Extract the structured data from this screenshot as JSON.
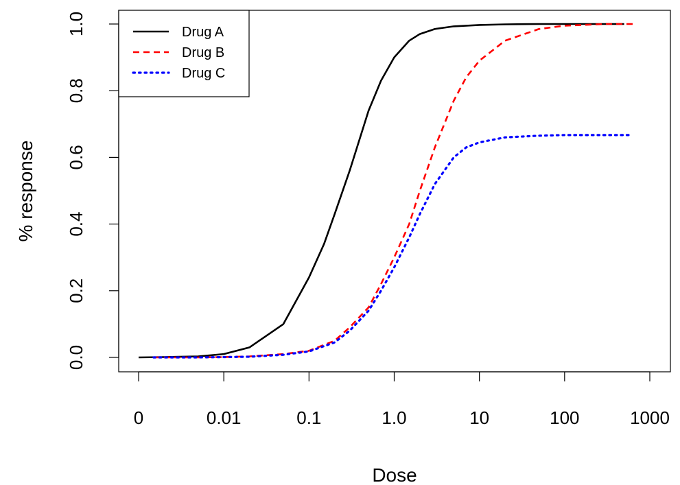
{
  "chart_data": {
    "type": "line",
    "title": "",
    "xlabel": "Dose",
    "ylabel": "% response",
    "x_scale": "log10",
    "xlim": [
      0.001,
      1000
    ],
    "ylim": [
      0,
      1
    ],
    "x_ticks": [
      {
        "value": 0.001,
        "label": "0"
      },
      {
        "value": 0.01,
        "label": "0.01"
      },
      {
        "value": 0.1,
        "label": "0.1"
      },
      {
        "value": 1,
        "label": "1.0"
      },
      {
        "value": 10,
        "label": "10"
      },
      {
        "value": 100,
        "label": "100"
      },
      {
        "value": 1000,
        "label": "1000"
      }
    ],
    "y_ticks": [
      {
        "value": 0.0,
        "label": "0.0"
      },
      {
        "value": 0.2,
        "label": "0.2"
      },
      {
        "value": 0.4,
        "label": "0.4"
      },
      {
        "value": 0.6,
        "label": "0.6"
      },
      {
        "value": 0.8,
        "label": "0.8"
      },
      {
        "value": 1.0,
        "label": "1.0"
      }
    ],
    "grid": false,
    "legend_position": "top-left",
    "series": [
      {
        "name": "Drug A",
        "color": "#000000",
        "line_style": "solid",
        "x": [
          0.001,
          0.002,
          0.005,
          0.01,
          0.02,
          0.05,
          0.1,
          0.15,
          0.2,
          0.3,
          0.5,
          0.7,
          1,
          1.5,
          2,
          3,
          5,
          10,
          20,
          50,
          100,
          500
        ],
        "y": [
          0.0,
          0.001,
          0.003,
          0.01,
          0.03,
          0.1,
          0.24,
          0.34,
          0.43,
          0.56,
          0.74,
          0.83,
          0.9,
          0.95,
          0.97,
          0.985,
          0.993,
          0.997,
          0.999,
          1.0,
          1.0,
          1.0
        ]
      },
      {
        "name": "Drug B",
        "color": "#ff0000",
        "line_style": "dashed",
        "x": [
          0.0015,
          0.005,
          0.01,
          0.02,
          0.05,
          0.1,
          0.2,
          0.3,
          0.5,
          0.7,
          1,
          1.5,
          2,
          3,
          5,
          7,
          10,
          20,
          50,
          100,
          300,
          700
        ],
        "y": [
          0.0,
          0.0,
          0.001,
          0.003,
          0.01,
          0.02,
          0.05,
          0.09,
          0.15,
          0.22,
          0.3,
          0.4,
          0.5,
          0.63,
          0.77,
          0.84,
          0.89,
          0.95,
          0.985,
          0.995,
          1.0,
          1.0
        ]
      },
      {
        "name": "Drug C",
        "color": "#0000ff",
        "line_style": "dotted",
        "x": [
          0.0015,
          0.005,
          0.01,
          0.02,
          0.05,
          0.1,
          0.2,
          0.3,
          0.5,
          0.7,
          1,
          1.5,
          2,
          3,
          5,
          7,
          10,
          20,
          50,
          100,
          300,
          600
        ],
        "y": [
          0.0,
          0.0,
          0.001,
          0.002,
          0.008,
          0.018,
          0.045,
          0.08,
          0.14,
          0.2,
          0.27,
          0.36,
          0.43,
          0.52,
          0.6,
          0.63,
          0.645,
          0.66,
          0.665,
          0.667,
          0.667,
          0.667
        ]
      }
    ]
  }
}
